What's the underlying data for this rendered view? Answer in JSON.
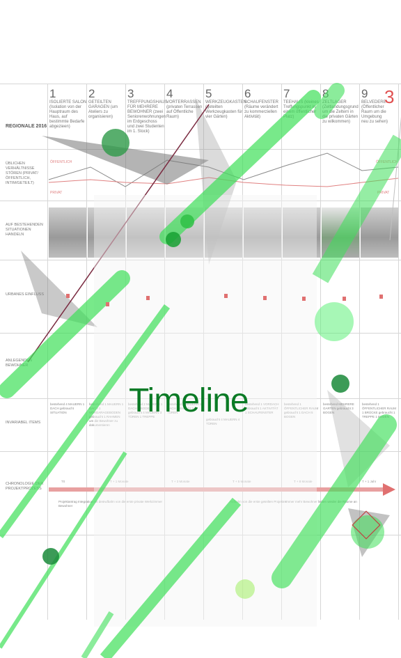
{
  "title": "Timeline",
  "region_label": "REGIONALE 2016",
  "columns": [
    {
      "num": "1",
      "title": "ISOLIERTE SALON",
      "desc": "(Isolation von der Hauptraum des Haus, auf bestimmte Bedarfe abgezieen)"
    },
    {
      "num": "2",
      "title": "GETEILTEN GARAGEN",
      "desc": "(um Ateliers zu organisieren)"
    },
    {
      "num": "3",
      "title": "TREFFPUNGSHAUS FÜR MEHRERE BEWOHNER",
      "desc": "(zwei Seniorenwohnungen im Erdgeschoss und zwei Studenten im 1. Stock)"
    },
    {
      "num": "4",
      "title": "VORTERRASSEN",
      "desc": "(privaten Terrassen auf Öffentliche Raum)"
    },
    {
      "num": "5",
      "title": "WERKZEUGKASTEN",
      "desc": "(geteilten Werkzeugkasten für vier Gärten)"
    },
    {
      "num": "6",
      "title": "SCHAUFENSTER",
      "desc": "(Räume verändert zu kommerziellen Aktivität)"
    },
    {
      "num": "7",
      "title": "TEEHAUS",
      "desc": "(kleines Treffungspunkt in einem öffentlicher Platz)"
    },
    {
      "num": "8",
      "title": "ZELTLAGER",
      "desc": "(Zeltlandungsgrund um die Zeltern in die privaten Gärten zu wilkommen)"
    },
    {
      "num": "9",
      "title": "BELVEDERE",
      "desc": "(Öffentlicher Raum um die Umgebung neu zu sehen)"
    }
  ],
  "big_number": "3",
  "rows": [
    "ÜBLICHEN VERHÄLTNISSE STÖREN (privat/öffentlich, intim/geteilt)",
    "AUF BESTEHENDEN SITUATIONEN HANDELN",
    "URBANES EINFLUSS",
    "ANLEGENDEN BEWOHNER",
    "INVARIABEL ITEMS",
    "CHRONOLOGIE DER PROJEKTPROZESS"
  ],
  "tags": {
    "public_left": "ÖFFENTLICH",
    "private_left": "PRIVAT",
    "public_right": "ÖFFENTLICH",
    "private_right": "PRIVAT"
  },
  "items": [
    "bestehend 4 MAUERN 1 DACH gebraucht SITUATION",
    "bestehend 1 MAUERN 1 DACH 1 VORGARAGEBODEN gebraucht 1 RAHMEN um die Bewohner zu dokumentieren",
    "bestehend 2 MAUERN 1 DACH 1 BODEN gebraucht 4 MAUERN 3 TÜREN 1 TREPPE",
    "bestehend 4 MAUERN 1 DACH gebraucht 2 TÜREN",
    "gebraucht 4 MAUERN 4 TÜREN",
    "bestehend 1 VORDACH gebraucht 1 AKTIVITÄT 1 SCHAUFENSTER",
    "bestehend 1 ÖFFENTLICHER RAUM gebraucht 1 DACH 5 BOGEN",
    "bestehend MEHRERE GARTEN gebraucht 3 BOGEN",
    "bestehend 1 ÖFFENTLICHER RAUM 1 BRÜCKE gebraucht 1 TREPPE 1 BODEN"
  ],
  "timeline_ticks": [
    "T0",
    "T + 1 Monate",
    "T + 3 Monate",
    "T + 5 Monate",
    "T + 8 Monate",
    "T + 1 Jahr"
  ],
  "timeline_notes": [
    "Projektantrag Integration mit den Bewohner",
    "Aufbahn von die erste private Werkzimmer",
    "Aufbahn von die erste geteilten Projekten",
    "Immer mehr Bewohner lieben wieder die Räume an"
  ],
  "colors": {
    "accent_green": "#0a7a25",
    "overlay_green": "#3fe05a",
    "red": "#e07070"
  }
}
